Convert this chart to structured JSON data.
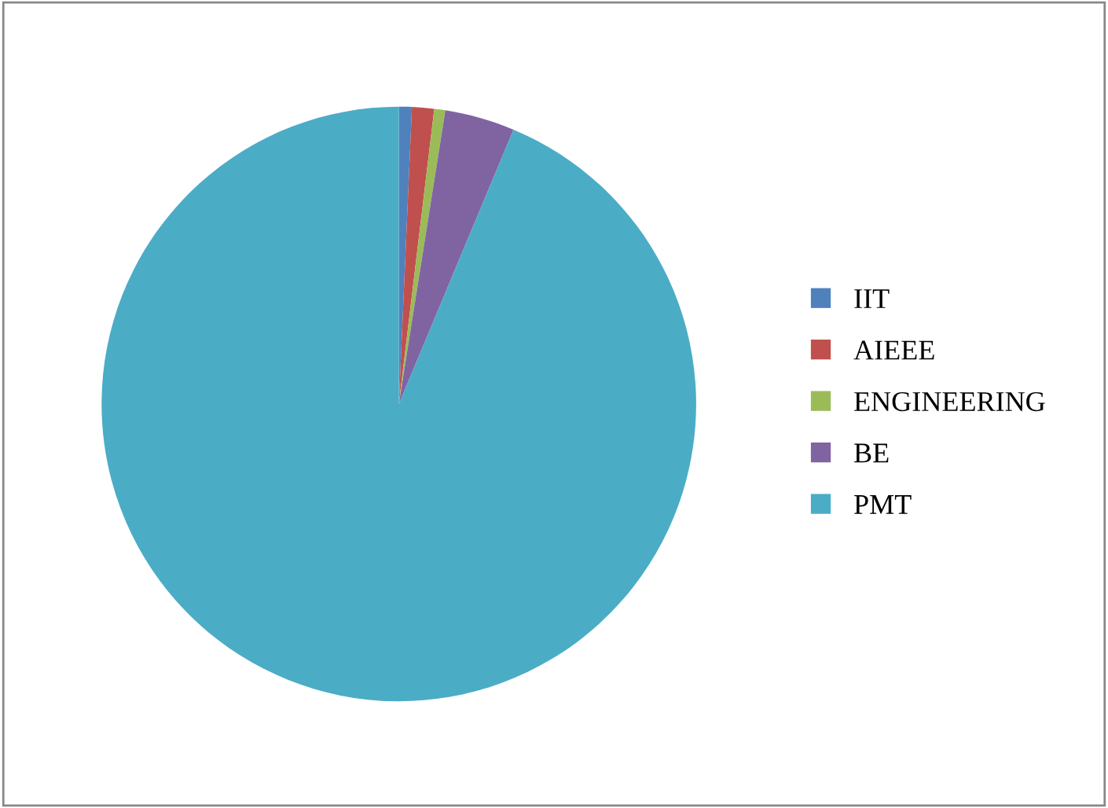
{
  "chart_data": {
    "type": "pie",
    "categories": [
      "IIT",
      "AIEEE",
      "ENGINEERING",
      "BE",
      "PMT"
    ],
    "values": [
      0.7,
      1.2,
      0.6,
      3.8,
      93.7
    ],
    "colors": [
      "#4f81bd",
      "#c0504d",
      "#9bbb59",
      "#8064a2",
      "#4bacc6"
    ],
    "legend": "right"
  }
}
